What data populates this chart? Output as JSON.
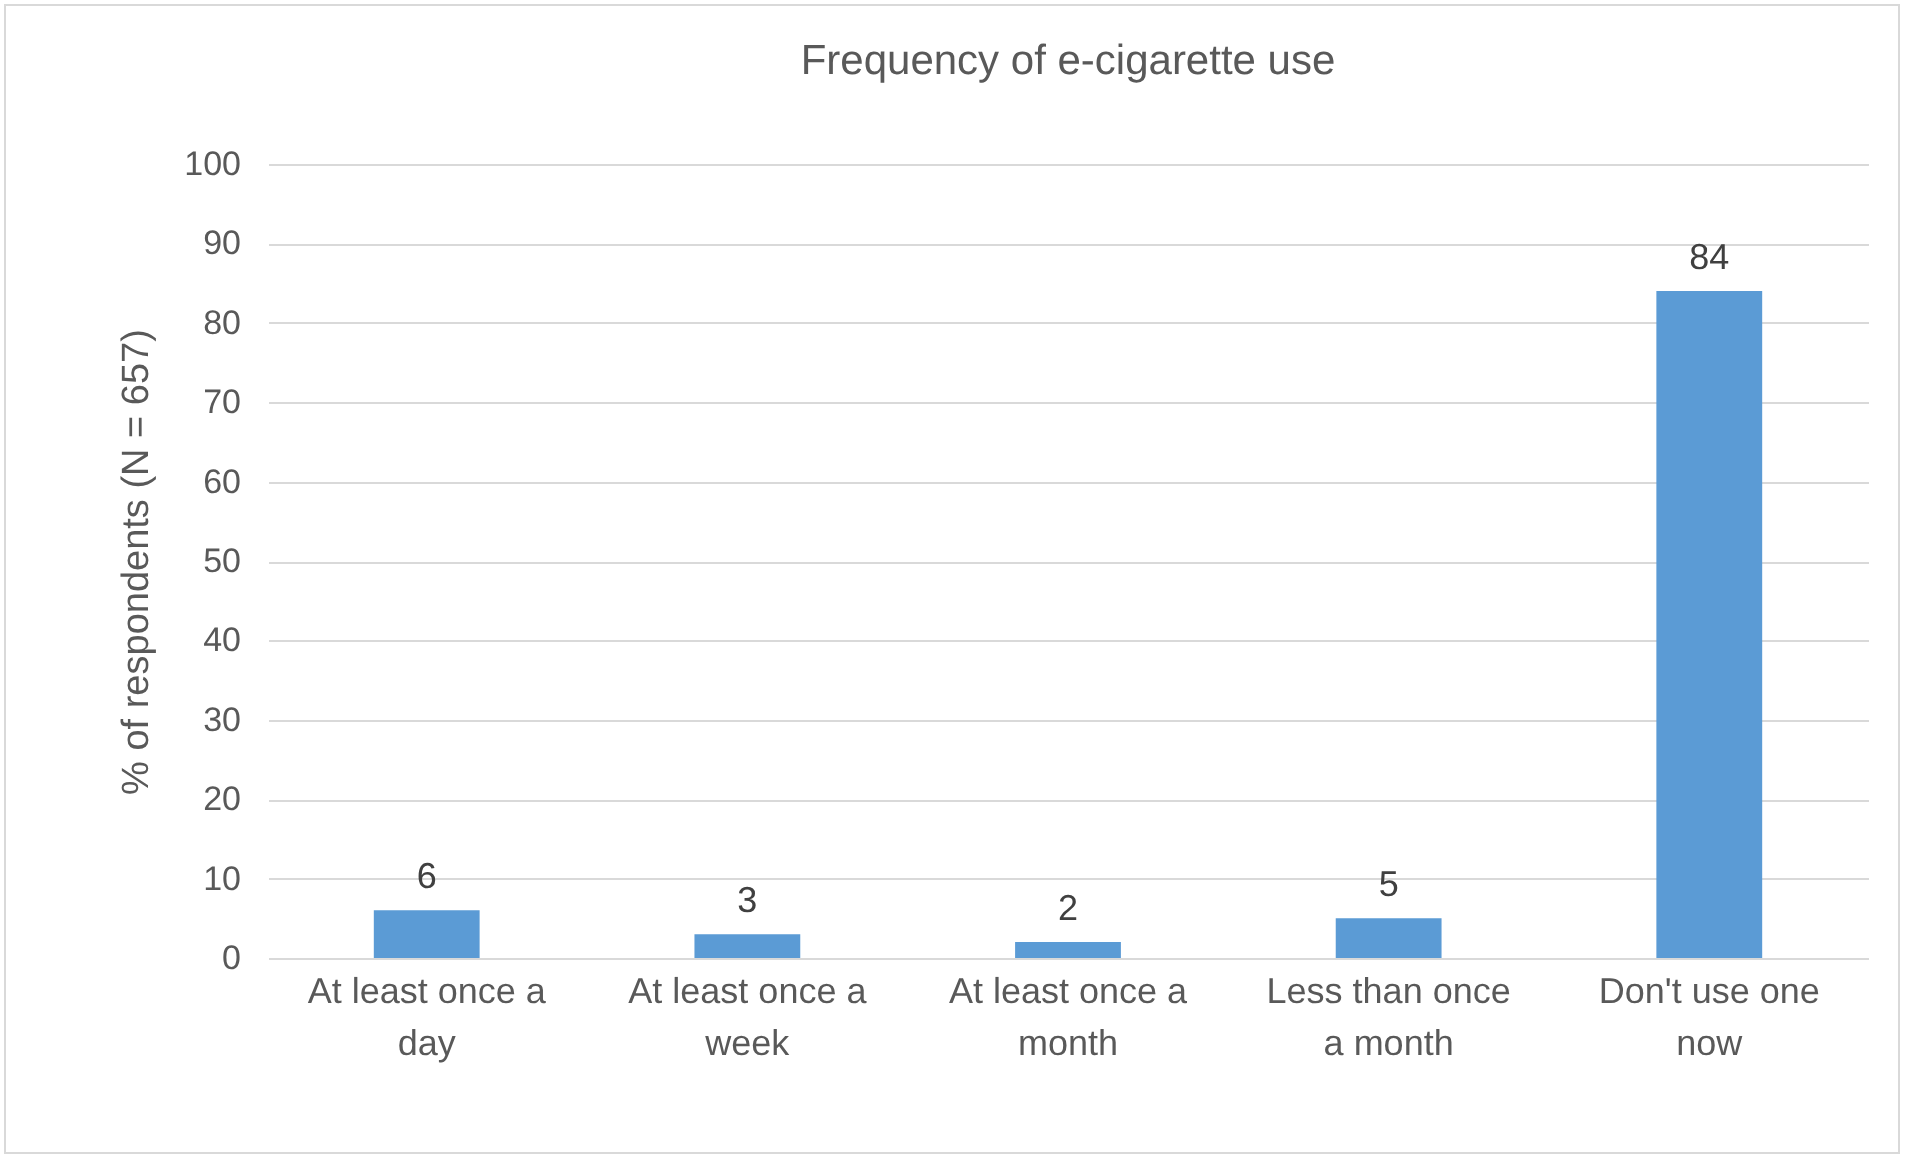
{
  "chart_data": {
    "type": "bar",
    "title": "Frequency of e-cigarette use",
    "ylabel": "% of  respondents (N = 657)",
    "categories": [
      "At least once a day",
      "At least once a week",
      "At least once a month",
      "Less than once a month",
      "Don't use one now"
    ],
    "values": [
      6,
      3,
      2,
      5,
      84
    ],
    "color": "#5b9bd5",
    "ylim": [
      0,
      100
    ],
    "yticks": [
      0,
      10,
      20,
      30,
      40,
      50,
      60,
      70,
      80,
      90,
      100
    ],
    "grid": "y",
    "data_labels": true
  }
}
